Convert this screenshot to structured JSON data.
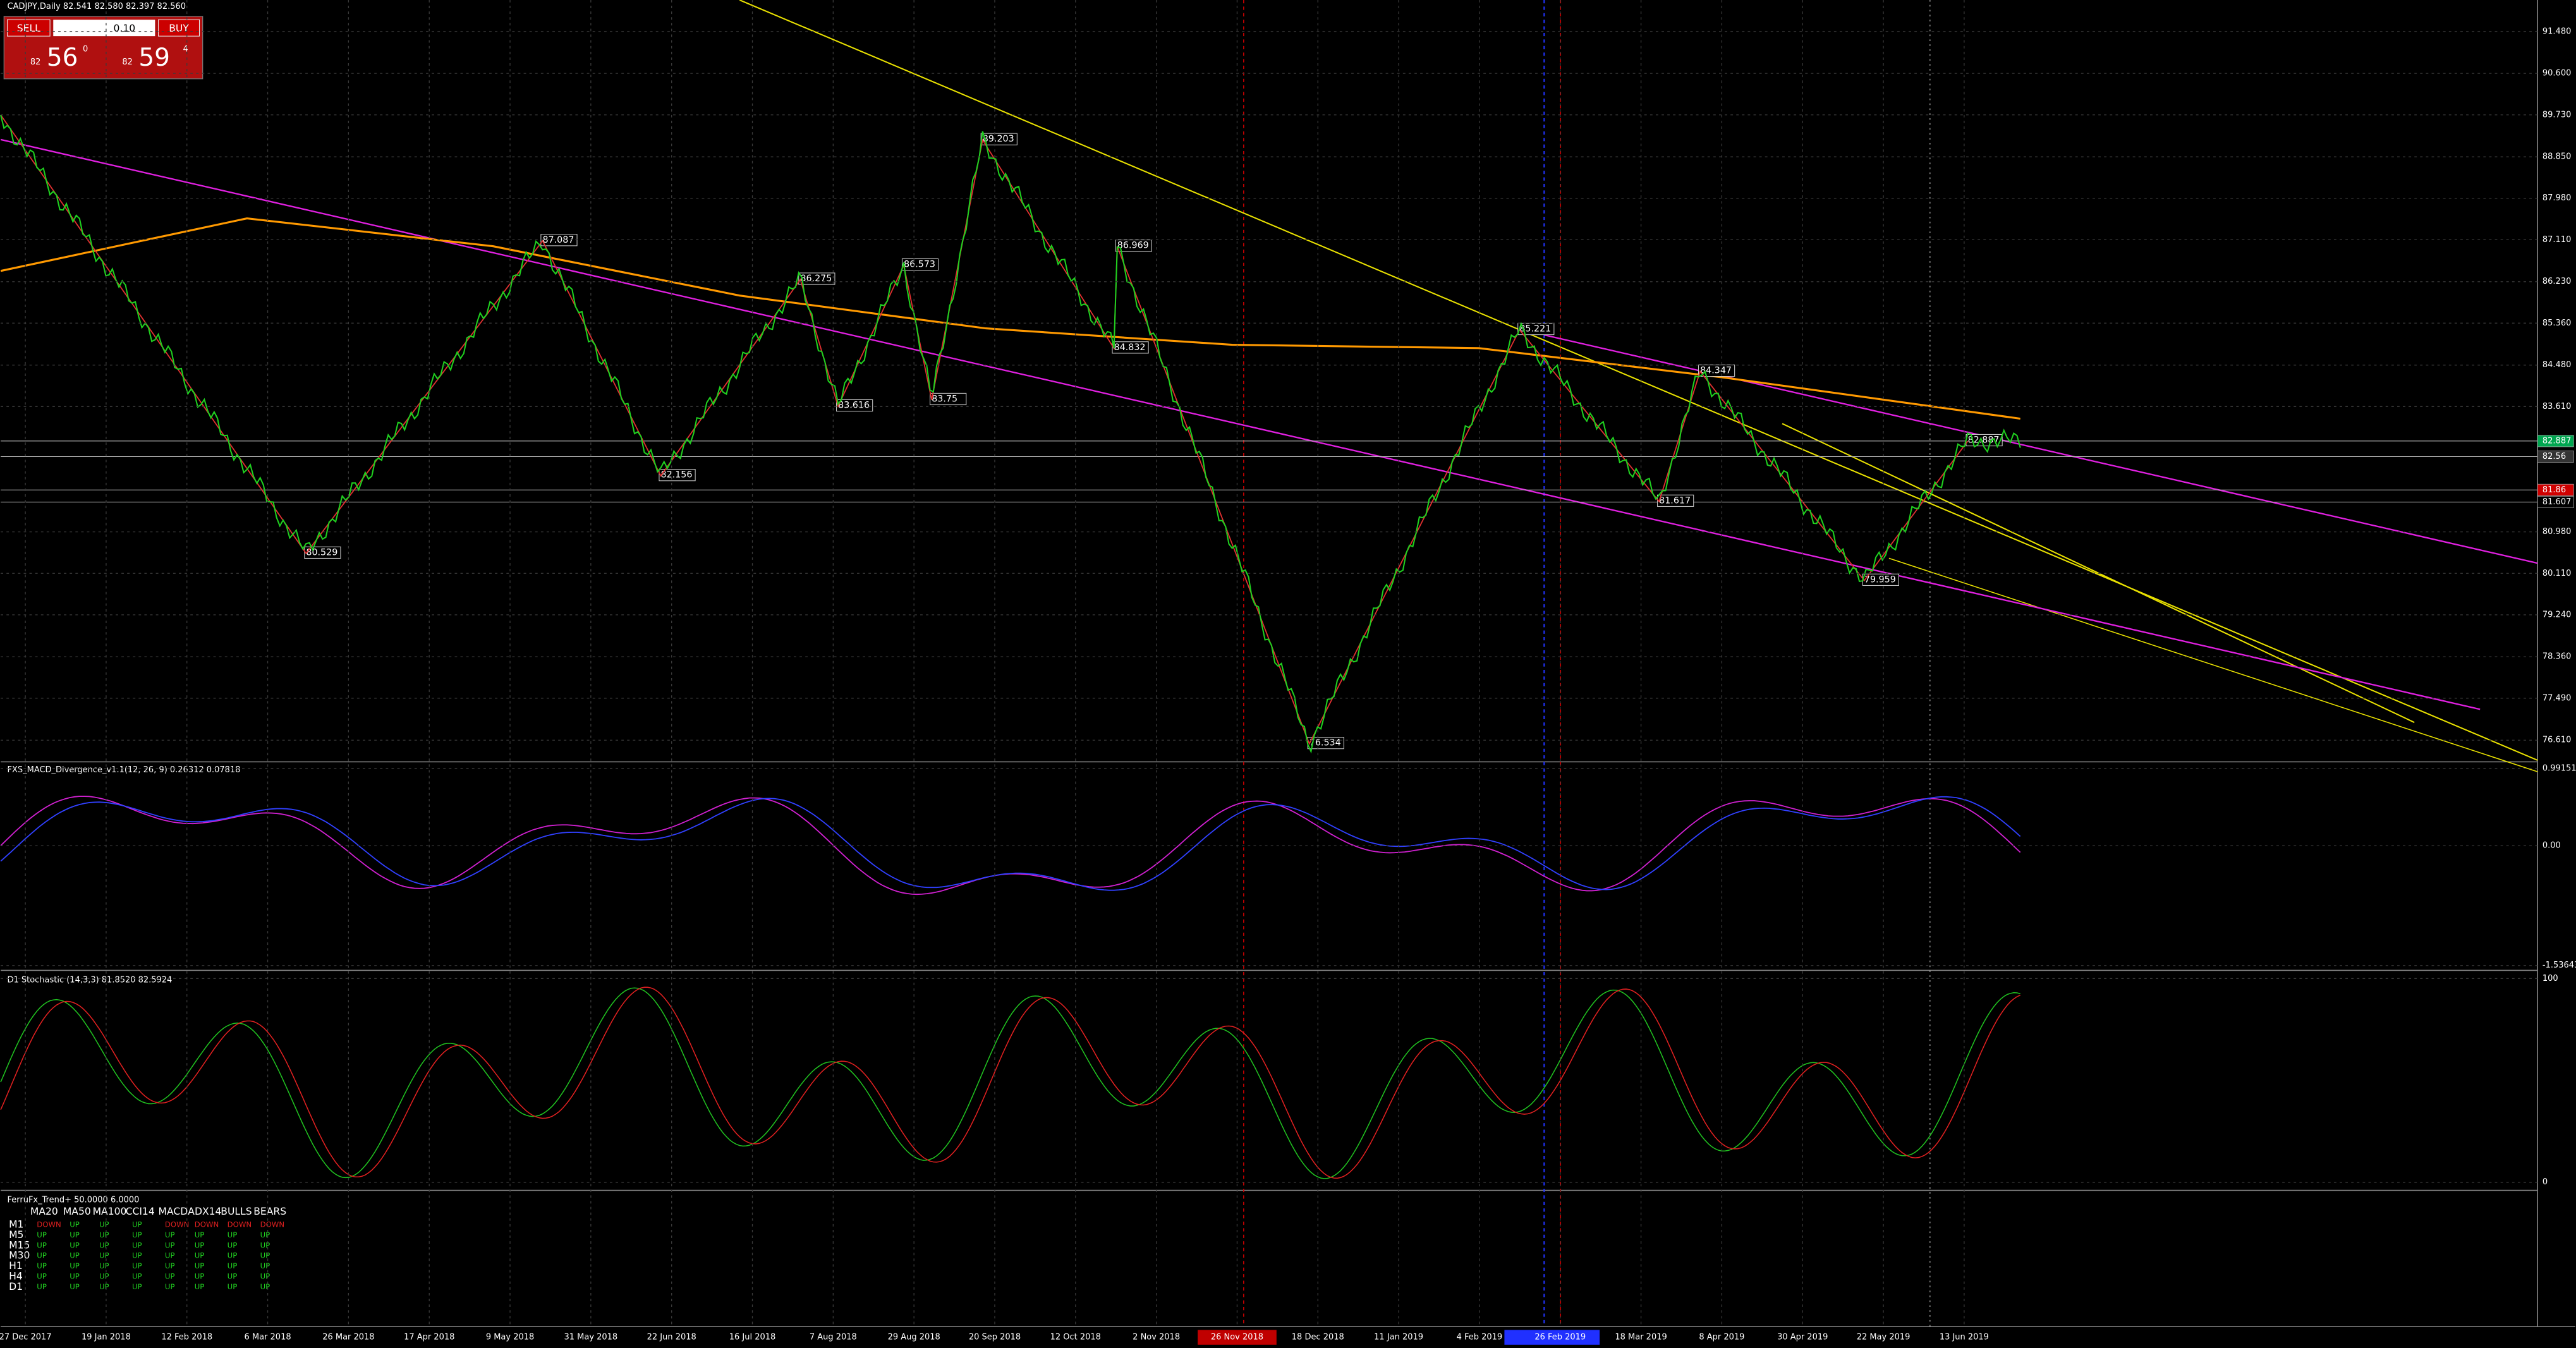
{
  "header": {
    "title": "CADJPY,Daily  82.541 82.580 82.397 82.560"
  },
  "trade_panel": {
    "sell": "SELL",
    "lot": "0.10",
    "buy": "BUY",
    "sell_price": {
      "big": "82",
      "main": "56",
      "small": "0"
    },
    "buy_price": {
      "big": "82",
      "main": "59",
      "small": "4"
    }
  },
  "price_chart": {
    "ylim": [
      76.19,
      92.14
    ],
    "yticks": [
      {
        "value": 91.48,
        "label": "91.480"
      },
      {
        "value": 90.6,
        "label": "90.600"
      },
      {
        "value": 89.73,
        "label": "89.730"
      },
      {
        "value": 88.85,
        "label": "88.850"
      },
      {
        "value": 87.98,
        "label": "87.980"
      },
      {
        "value": 87.11,
        "label": "87.110"
      },
      {
        "value": 86.23,
        "label": "86.230"
      },
      {
        "value": 85.36,
        "label": "85.360"
      },
      {
        "value": 84.48,
        "label": "84.480"
      },
      {
        "value": 83.61,
        "label": "83.610"
      },
      {
        "value": 80.98,
        "label": "80.980"
      },
      {
        "value": 80.11,
        "label": "80.110"
      },
      {
        "value": 79.24,
        "label": "79.240"
      },
      {
        "value": 78.36,
        "label": "78.360"
      },
      {
        "value": 77.49,
        "label": "77.490"
      },
      {
        "value": 76.61,
        "label": "76.610"
      }
    ],
    "price_markers": [
      {
        "value": 82.887,
        "color": "#00a650"
      },
      {
        "value": 82.56,
        "color": "#333333"
      },
      {
        "value": 81.86,
        "color": "#d00000"
      },
      {
        "value": 81.607,
        "color": "#000000"
      }
    ],
    "swing_labels": [
      80.529,
      82.156,
      87.087,
      86.275,
      83.616,
      86.573,
      83.75,
      89.203,
      84.832,
      86.969,
      76.534,
      85.221,
      81.617,
      84.347,
      79.959,
      82.887
    ]
  },
  "macd": {
    "title": "FXS_MACD_Divergence_v1.1(12, 26, 9) 0.26312 0.07818",
    "ylim": [
      -1.578,
      1.055
    ],
    "yticks": [
      0.99151,
      {
        "value": 0,
        "label": "0.00"
      },
      -1.53643
    ]
  },
  "stochastic": {
    "title": "D1 Stochastic (14,3,3) 81.8520 82.5924",
    "ylim": [
      -3.2,
      103.2
    ],
    "yticks": [
      100,
      0
    ]
  },
  "trend_table": {
    "title": "FerruFx_Trend+ 50.0000 6.0000",
    "columns": [
      "MA20",
      "MA50",
      "MA100",
      "CCI14",
      "MACD",
      "ADX14",
      "BULLS",
      "BEARS"
    ],
    "rows": [
      {
        "tf": "M1",
        "cells": [
          "DOWN",
          "UP",
          "UP",
          "UP",
          "DOWN",
          "DOWN",
          "DOWN",
          "DOWN"
        ]
      },
      {
        "tf": "M5",
        "cells": [
          "UP",
          "UP",
          "UP",
          "UP",
          "UP",
          "UP",
          "UP",
          "UP"
        ]
      },
      {
        "tf": "M15",
        "cells": [
          "UP",
          "UP",
          "UP",
          "UP",
          "UP",
          "UP",
          "UP",
          "UP"
        ]
      },
      {
        "tf": "M30",
        "cells": [
          "UP",
          "UP",
          "UP",
          "UP",
          "UP",
          "UP",
          "UP",
          "UP"
        ]
      },
      {
        "tf": "H1",
        "cells": [
          "UP",
          "UP",
          "UP",
          "UP",
          "UP",
          "UP",
          "UP",
          "UP"
        ]
      },
      {
        "tf": "H4",
        "cells": [
          "UP",
          "UP",
          "UP",
          "UP",
          "UP",
          "UP",
          "UP",
          "UP"
        ]
      },
      {
        "tf": "D1",
        "cells": [
          "UP",
          "UP",
          "UP",
          "UP",
          "UP",
          "UP",
          "UP",
          "UP"
        ]
      }
    ]
  },
  "time_axis": {
    "labels": [
      "27 Dec 2017",
      "19 Jan 2018",
      "12 Feb 2018",
      "6 Mar 2018",
      "26 Mar 2018",
      "17 Apr 2018",
      "9 May 2018",
      "31 May 2018",
      "22 Jun 2018",
      "16 Jul 2018",
      "7 Aug 2018",
      "29 Aug 2018",
      "20 Sep 2018",
      "12 Oct 2018",
      "2 Nov 2018",
      "26 Nov 2018",
      "18 Dec 2018",
      "11 Jan 2019",
      "4 Feb 2019",
      "26 Feb 2019",
      "18 Mar 2019",
      "8 Apr 2019",
      "30 Apr 2019",
      "22 May 2019",
      "13 Jun 2019"
    ]
  }
}
